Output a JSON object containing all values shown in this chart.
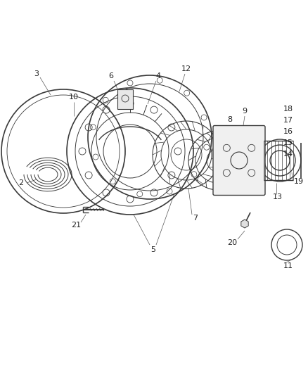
{
  "bg_color": "#ffffff",
  "line_color": "#3a3a3a",
  "fig_width": 4.38,
  "fig_height": 5.33,
  "dpi": 100
}
